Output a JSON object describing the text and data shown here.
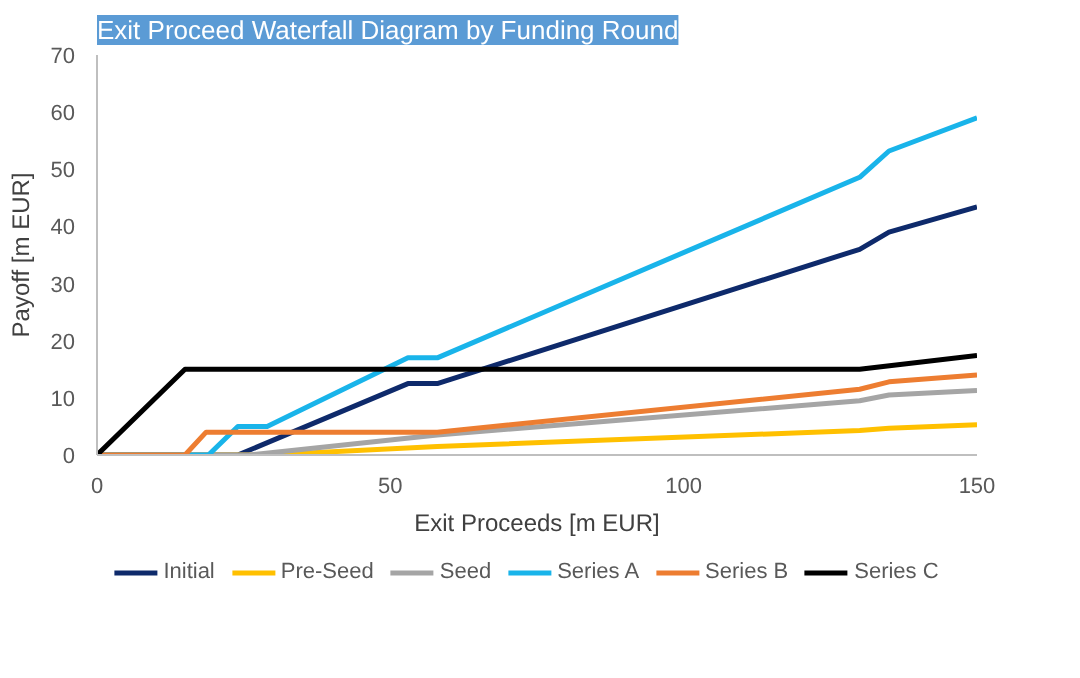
{
  "chart_data": {
    "type": "line",
    "title": "Exit Proceed Waterfall Diagram by Funding Round",
    "xlabel": "Exit Proceeds [m EUR]",
    "ylabel": "Payoff [m EUR]",
    "xlim": [
      0,
      150
    ],
    "xticks": [
      0,
      50,
      100,
      150
    ],
    "ylim": [
      0,
      70
    ],
    "yticks": [
      0,
      10,
      20,
      30,
      40,
      50,
      60,
      70
    ],
    "grid": false,
    "legend": "bottom",
    "marker": "none",
    "line_style": "solid",
    "series": [
      {
        "name": "Initial",
        "color": "#0e2a6b",
        "x": [
          0,
          24,
          53,
          58,
          130,
          135,
          150
        ],
        "values": [
          0,
          0,
          12.5,
          12.5,
          36,
          39,
          43.4
        ]
      },
      {
        "name": "Pre-Seed",
        "color": "#ffc000",
        "x": [
          0,
          29,
          58,
          130,
          135,
          150
        ],
        "values": [
          0,
          0,
          1.5,
          4.3,
          4.7,
          5.3
        ]
      },
      {
        "name": "Seed",
        "color": "#a5a5a5",
        "x": [
          0,
          26,
          58,
          130,
          135,
          150
        ],
        "values": [
          0,
          0,
          3.5,
          9.5,
          10.5,
          11.3
        ]
      },
      {
        "name": "Series A",
        "color": "#19b4ea",
        "x": [
          0,
          19,
          24,
          29,
          53,
          58,
          130,
          135,
          150
        ],
        "values": [
          0,
          0,
          5,
          5,
          17,
          17,
          48.6,
          53.2,
          59
        ]
      },
      {
        "name": "Series B",
        "color": "#ed7d31",
        "x": [
          0,
          15,
          18.6,
          58,
          130,
          135,
          150
        ],
        "values": [
          0,
          0,
          4,
          4,
          11.5,
          12.8,
          14
        ]
      },
      {
        "name": "Series C",
        "color": "#000000",
        "x": [
          0,
          15,
          130,
          150
        ],
        "values": [
          0,
          15,
          15,
          17.4
        ]
      }
    ]
  }
}
